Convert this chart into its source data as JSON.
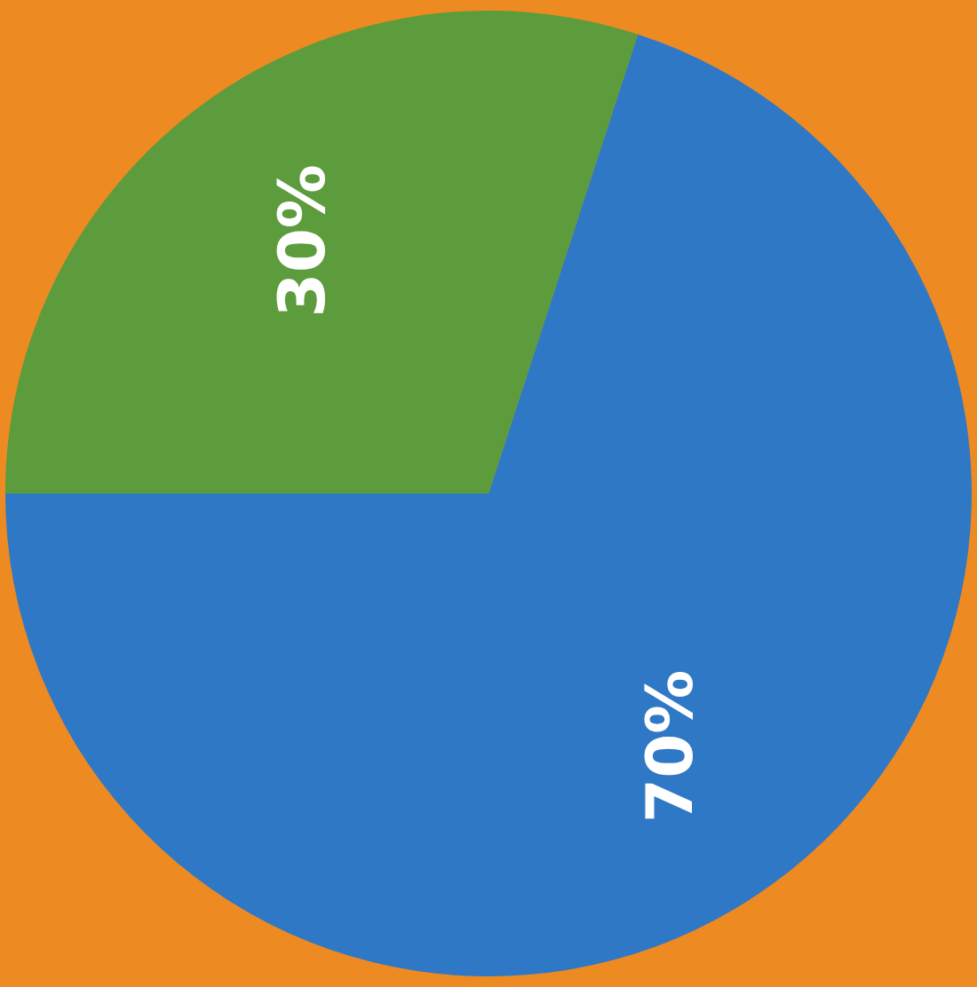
{
  "chart_data": {
    "type": "pie",
    "categories": [
      null,
      null
    ],
    "values": [
      70,
      30
    ],
    "colors": [
      "#2f78c6",
      "#5c9c3c"
    ],
    "value_labels": [
      "70%",
      "30%"
    ]
  }
}
